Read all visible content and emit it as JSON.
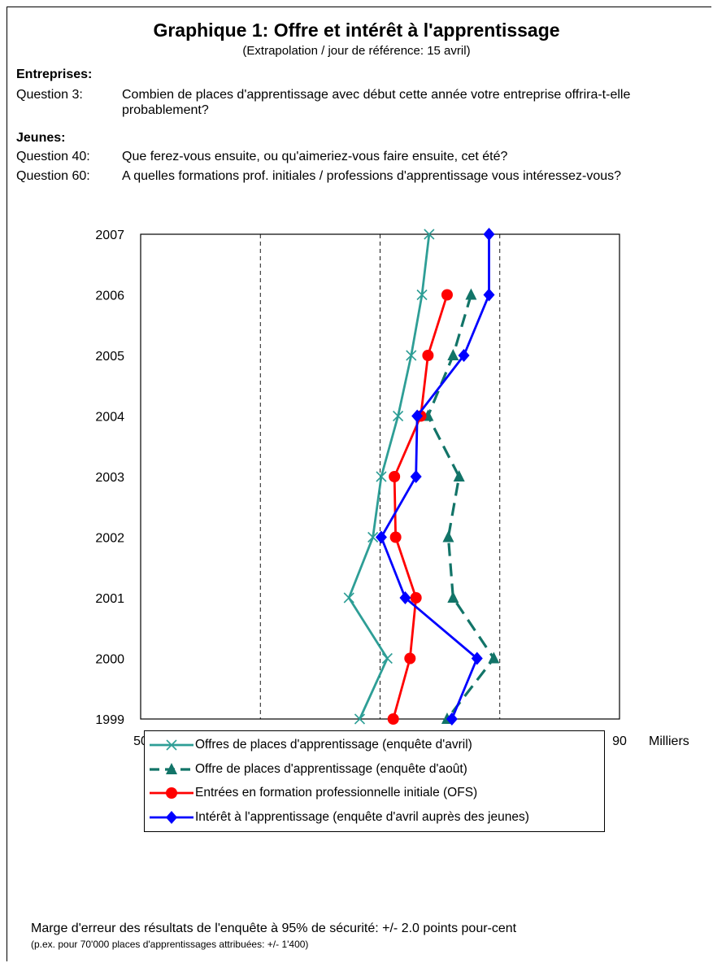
{
  "header": {
    "title": "Graphique 1: Offre et intérêt à l'apprentissage",
    "subtitle": "(Extrapolation / jour de référence: 15 avril)"
  },
  "questions": {
    "entreprises_heading": "Entreprises:",
    "q3_label": "Question 3:",
    "q3_text": "Combien de places d'apprentissage avec début cette année votre entreprise offrira-t-elle probablement?",
    "jeunes_heading": "Jeunes:",
    "q40_label": "Question 40:",
    "q40_text": "Que ferez-vous ensuite, ou qu'aimeriez-vous faire ensuite, cet été?",
    "q60_label": "Question 60:",
    "q60_text": "A quelles formations prof. initiales / professions d'apprentissage vous intéressez-vous?"
  },
  "footer": {
    "margin_note": "Marge d'erreur des résultats de l'enquête à 95% de sécurité: +/- 2.0 points pour-cent",
    "example_note": "(p.ex. pour 70'000 places d'apprentissages attribuées: +/- 1'400)"
  },
  "chart_data": {
    "type": "line",
    "orientation": "horizontal-values",
    "x_unit_label": "Milliers",
    "xlim": [
      50,
      90
    ],
    "x_ticks": [
      50,
      60,
      70,
      80,
      90
    ],
    "x_gridlines": [
      60,
      70,
      80
    ],
    "grid": "dashed vertical",
    "years": [
      "2007",
      "2006",
      "2005",
      "2004",
      "2003",
      "2002",
      "2001",
      "2000",
      "1999"
    ],
    "legend_position": "bottom",
    "series": [
      {
        "name": "Offres de places d'apprentissage (enquête d'avril)",
        "color": "#2e9e96",
        "marker": "x",
        "dashed": false,
        "values": {
          "1999": 68.3,
          "2000": 70.6,
          "2001": 67.4,
          "2002": 69.4,
          "2003": 70.1,
          "2004": 71.5,
          "2005": 72.6,
          "2006": 73.5,
          "2007": 74.1
        }
      },
      {
        "name": "Offre de places d'apprentissage (enquête d'août)",
        "color": "#127468",
        "marker": "triangle",
        "dashed": true,
        "values": {
          "1999": 75.6,
          "2000": 79.5,
          "2001": 76.1,
          "2002": 75.7,
          "2003": 76.6,
          "2004": 74.0,
          "2005": 76.1,
          "2006": 77.6
        }
      },
      {
        "name": "Entrées en formation professionnelle initiale (OFS)",
        "color": "#ff0000",
        "marker": "circle",
        "dashed": false,
        "values": {
          "1999": 71.1,
          "2000": 72.5,
          "2001": 73.0,
          "2002": 71.3,
          "2003": 71.2,
          "2004": 73.4,
          "2005": 74.0,
          "2006": 75.6
        }
      },
      {
        "name": "Intérêt à l'apprentissage (enquête d'avril auprès des jeunes)",
        "color": "#0000ff",
        "marker": "diamond",
        "dashed": false,
        "values": {
          "1999": 76.0,
          "2000": 78.1,
          "2001": 72.1,
          "2002": 70.1,
          "2003": 73.0,
          "2004": 73.1,
          "2005": 77.0,
          "2006": 79.1,
          "2007": 79.1
        }
      }
    ]
  }
}
